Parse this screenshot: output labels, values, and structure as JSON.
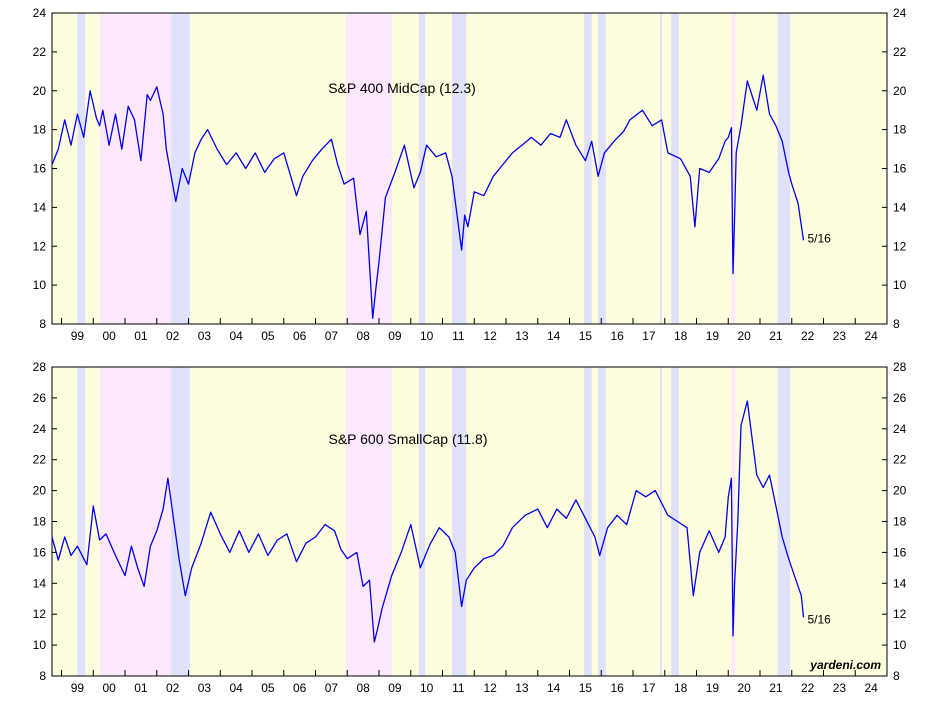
{
  "chart_data": [
    {
      "type": "line",
      "title": "S&P 400 MidCap (12.3)",
      "end_label": "5/16",
      "ylim": [
        8,
        24
      ],
      "y_ticks": [
        "8",
        "10",
        "12",
        "14",
        "16",
        "18",
        "20",
        "22",
        "24"
      ],
      "x_ticks": [
        "99",
        "00",
        "01",
        "02",
        "03",
        "04",
        "05",
        "06",
        "07",
        "08",
        "09",
        "10",
        "11",
        "12",
        "13",
        "14",
        "15",
        "16",
        "17",
        "18",
        "19",
        "20",
        "21",
        "22",
        "23",
        "24"
      ],
      "x_range": [
        1998.7,
        2025.0
      ],
      "series": [
        {
          "color": "#0000ee",
          "x": [
            1998.7,
            1998.9,
            1999.1,
            1999.3,
            1999.5,
            1999.7,
            1999.9,
            2000.1,
            2000.2,
            2000.3,
            2000.5,
            2000.7,
            2000.9,
            2001.1,
            2001.3,
            2001.5,
            2001.7,
            2001.8,
            2002.0,
            2002.2,
            2002.3,
            2002.5,
            2002.6,
            2002.8,
            2003.0,
            2003.2,
            2003.4,
            2003.6,
            2003.9,
            2004.2,
            2004.5,
            2004.8,
            2005.1,
            2005.4,
            2005.7,
            2006.0,
            2006.4,
            2006.6,
            2006.9,
            2007.2,
            2007.5,
            2007.7,
            2007.9,
            2008.2,
            2008.4,
            2008.6,
            2008.8,
            2008.9,
            2009.0,
            2009.2,
            2009.5,
            2009.8,
            2010.1,
            2010.3,
            2010.5,
            2010.8,
            2011.1,
            2011.3,
            2011.6,
            2011.7,
            2011.8,
            2012.0,
            2012.3,
            2012.6,
            2012.9,
            2013.2,
            2013.5,
            2013.8,
            2014.1,
            2014.4,
            2014.7,
            2014.9,
            2015.2,
            2015.5,
            2015.7,
            2015.9,
            2016.1,
            2016.4,
            2016.7,
            2016.9,
            2017.3,
            2017.6,
            2017.9,
            2018.1,
            2018.5,
            2018.8,
            2018.95,
            2019.1,
            2019.4,
            2019.7,
            2019.9,
            2020.0,
            2020.1,
            2020.15,
            2020.2,
            2020.25,
            2020.4,
            2020.6,
            2020.9,
            2021.1,
            2021.3,
            2021.5,
            2021.7,
            2021.9,
            2022.0,
            2022.2,
            2022.37
          ],
          "values": [
            16.2,
            17.0,
            18.5,
            17.2,
            18.8,
            17.6,
            20.0,
            18.6,
            18.2,
            19.0,
            17.2,
            18.8,
            17.0,
            19.2,
            18.5,
            16.4,
            19.8,
            19.5,
            20.2,
            18.8,
            17.0,
            15.2,
            14.3,
            16.0,
            15.2,
            16.8,
            17.5,
            18.0,
            17.0,
            16.2,
            16.8,
            16.0,
            16.8,
            15.8,
            16.5,
            16.8,
            14.6,
            15.6,
            16.4,
            17.0,
            17.5,
            16.2,
            15.2,
            15.5,
            12.6,
            13.8,
            8.3,
            9.8,
            11.2,
            14.5,
            15.8,
            17.2,
            15.0,
            15.8,
            17.2,
            16.6,
            16.8,
            15.6,
            11.8,
            13.6,
            13.0,
            14.8,
            14.6,
            15.6,
            16.2,
            16.8,
            17.2,
            17.6,
            17.2,
            17.8,
            17.6,
            18.5,
            17.2,
            16.4,
            17.4,
            15.6,
            16.8,
            17.4,
            17.9,
            18.5,
            19.0,
            18.2,
            18.5,
            16.8,
            16.5,
            15.6,
            13.0,
            16.0,
            15.8,
            16.5,
            17.4,
            17.6,
            18.1,
            10.6,
            13.5,
            16.8,
            18.2,
            20.5,
            19.0,
            20.8,
            18.8,
            18.2,
            17.4,
            15.8,
            15.2,
            14.2,
            12.3
          ]
        }
      ]
    },
    {
      "type": "line",
      "title": "S&P 600 SmallCap (11.8)",
      "end_label": "5/16",
      "ylim": [
        8,
        28
      ],
      "y_ticks": [
        "8",
        "10",
        "12",
        "14",
        "16",
        "18",
        "20",
        "22",
        "24",
        "26",
        "28"
      ],
      "x_ticks": [
        "99",
        "00",
        "01",
        "02",
        "03",
        "04",
        "05",
        "06",
        "07",
        "08",
        "09",
        "10",
        "11",
        "12",
        "13",
        "14",
        "15",
        "16",
        "17",
        "18",
        "19",
        "20",
        "21",
        "22",
        "23",
        "24"
      ],
      "x_range": [
        1998.7,
        2025.0
      ],
      "series": [
        {
          "color": "#0000ee",
          "x": [
            1998.7,
            1998.9,
            1999.1,
            1999.3,
            1999.5,
            1999.8,
            2000.0,
            2000.2,
            2000.4,
            2000.7,
            2001.0,
            2001.2,
            2001.4,
            2001.6,
            2001.8,
            2002.0,
            2002.2,
            2002.35,
            2002.5,
            2002.7,
            2002.9,
            2003.1,
            2003.4,
            2003.7,
            2004.0,
            2004.3,
            2004.6,
            2004.9,
            2005.2,
            2005.5,
            2005.8,
            2006.1,
            2006.4,
            2006.7,
            2007.0,
            2007.3,
            2007.6,
            2007.8,
            2008.0,
            2008.3,
            2008.5,
            2008.7,
            2008.85,
            2008.95,
            2009.1,
            2009.4,
            2009.7,
            2010.0,
            2010.3,
            2010.6,
            2010.9,
            2011.2,
            2011.4,
            2011.6,
            2011.75,
            2012.0,
            2012.3,
            2012.6,
            2012.9,
            2013.2,
            2013.6,
            2014.0,
            2014.3,
            2014.6,
            2014.9,
            2015.2,
            2015.5,
            2015.8,
            2015.95,
            2016.2,
            2016.5,
            2016.8,
            2017.1,
            2017.4,
            2017.7,
            2017.9,
            2018.1,
            2018.4,
            2018.7,
            2018.9,
            2019.1,
            2019.4,
            2019.7,
            2019.9,
            2020.0,
            2020.1,
            2020.15,
            2020.2,
            2020.3,
            2020.4,
            2020.6,
            2020.9,
            2021.1,
            2021.3,
            2021.5,
            2021.7,
            2021.9,
            2022.1,
            2022.3,
            2022.37
          ],
          "values": [
            17.0,
            15.5,
            17.0,
            15.8,
            16.4,
            15.2,
            19.0,
            16.8,
            17.2,
            15.8,
            14.5,
            16.4,
            15.0,
            13.8,
            16.4,
            17.4,
            18.8,
            20.8,
            18.6,
            15.6,
            13.2,
            15.0,
            16.6,
            18.6,
            17.2,
            16.0,
            17.4,
            16.0,
            17.2,
            15.8,
            16.8,
            17.2,
            15.4,
            16.6,
            17.0,
            17.8,
            17.4,
            16.2,
            15.6,
            16.0,
            13.8,
            14.2,
            10.2,
            11.0,
            12.4,
            14.5,
            16.0,
            17.8,
            15.0,
            16.5,
            17.6,
            17.0,
            16.0,
            12.5,
            14.2,
            15.0,
            15.6,
            15.8,
            16.4,
            17.6,
            18.4,
            18.8,
            17.6,
            18.8,
            18.2,
            19.4,
            18.2,
            17.0,
            15.8,
            17.6,
            18.4,
            17.8,
            20.0,
            19.6,
            20.0,
            19.2,
            18.4,
            18.0,
            17.6,
            13.2,
            16.0,
            17.4,
            16.0,
            17.0,
            19.6,
            20.8,
            10.6,
            14.0,
            18.0,
            24.2,
            25.8,
            21.0,
            20.2,
            21.0,
            19.0,
            17.0,
            15.6,
            14.4,
            13.2,
            11.8
          ]
        }
      ]
    }
  ],
  "watermark": "yardeni.com",
  "colors": {
    "expansion": "#fefede",
    "recession": "#fde8fd",
    "correction": "#e0e2fb",
    "line": "#0000ee"
  }
}
